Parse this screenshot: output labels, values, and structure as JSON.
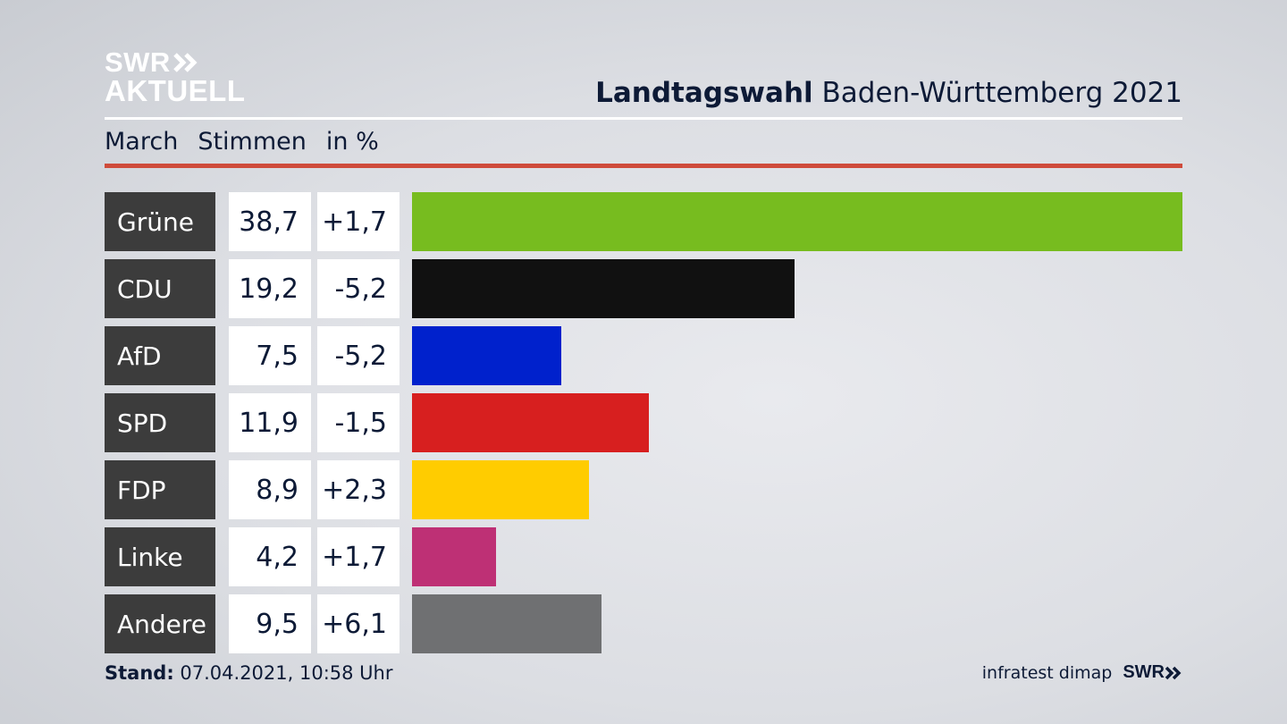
{
  "header": {
    "logo_line1": "SWR",
    "logo_line2": "AKTUELL",
    "title_bold": "Landtagswahl",
    "title_rest": " Baden-Württemberg 2021",
    "sub_region": "March",
    "sub_votes": "Stimmen",
    "sub_unit": "in %"
  },
  "colors": {
    "title_text": "#0d1a36",
    "accent_rule": "#cf4b3b",
    "party_label_bg": "#3c3c3c"
  },
  "chart_data": {
    "type": "bar",
    "orientation": "horizontal",
    "categories": [
      "Grüne",
      "CDU",
      "AfD",
      "SPD",
      "FDP",
      "Linke",
      "Andere"
    ],
    "values": [
      38.7,
      19.2,
      7.5,
      11.9,
      8.9,
      4.2,
      9.5
    ],
    "value_labels": [
      "38,7",
      "19,2",
      "7,5",
      "11,9",
      "8,9",
      "4,2",
      "9,5"
    ],
    "diff_labels": [
      "+1,7",
      "-5,2",
      "-5,2",
      "-1,5",
      "+2,3",
      "+1,7",
      "+6,1"
    ],
    "colors": [
      "#77bc1f",
      "#111111",
      "#0021cc",
      "#d71f1f",
      "#ffcc00",
      "#be3075",
      "#6f7072"
    ],
    "xlim": [
      0,
      38.7
    ],
    "grid": false,
    "legend": "none"
  },
  "footer": {
    "stand_label": "Stand:",
    "stand_value": " 07.04.2021, 10:58 Uhr",
    "source": "infratest dimap",
    "brand": "SWR"
  }
}
